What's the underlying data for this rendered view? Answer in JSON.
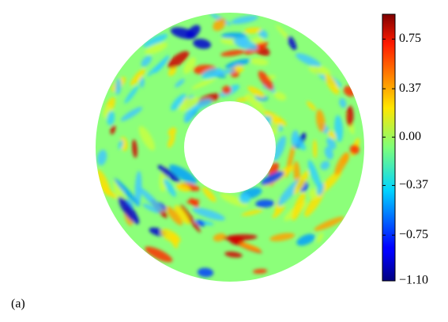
{
  "chart_data": {
    "type": "colormap",
    "colormap": "jet",
    "clim": [
      -1.1,
      0.94
    ],
    "ticks": [
      0.75,
      0.37,
      {
        "value": 0,
        "label": "0.00"
      },
      {
        "value": -0.37,
        "label": "−0.37"
      },
      {
        "value": -0.75,
        "label": "−0.75"
      },
      {
        "value": -1.1,
        "label": "−1.10"
      }
    ]
  },
  "caption": "(a)"
}
